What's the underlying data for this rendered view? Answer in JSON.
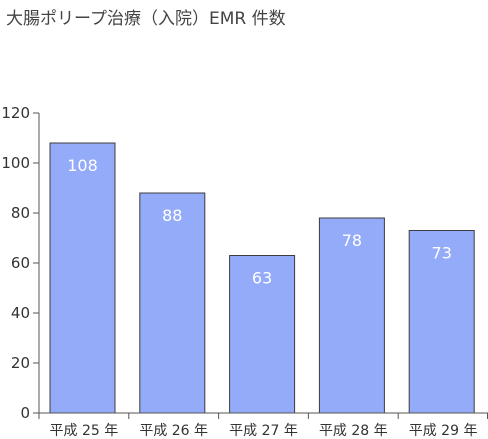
{
  "chart_data": {
    "type": "bar",
    "title": "大腸ポリープ治療（入院）EMR 件数",
    "categories": [
      "平成 25 年",
      "平成 26 年",
      "平成 27 年",
      "平成 28 年",
      "平成 29 年"
    ],
    "values": [
      108,
      88,
      63,
      78,
      73
    ],
    "xlabel": "",
    "ylabel": "",
    "ylim": [
      0,
      120
    ],
    "yticks": [
      0,
      20,
      40,
      60,
      80,
      100,
      120
    ],
    "grid": false,
    "legend": "none",
    "bar_color": "#94abfa",
    "bar_edge_color": "#3c3c3c",
    "data_label_color": "#ffffff"
  }
}
